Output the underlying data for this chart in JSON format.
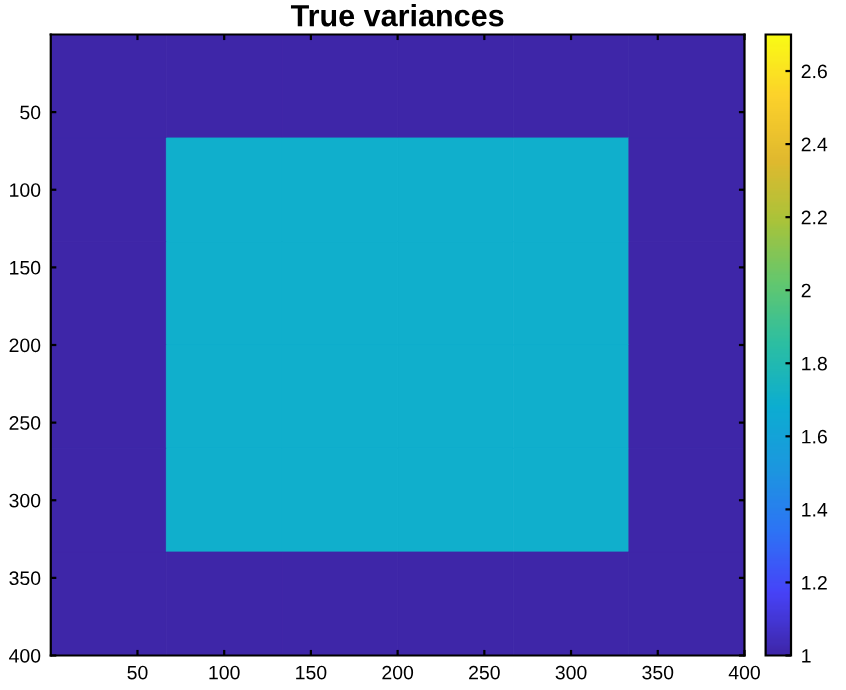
{
  "chart_data": {
    "type": "heatmap",
    "title": "True variances",
    "x": [
      33.3,
      100,
      166.7,
      233.3,
      300,
      366.7
    ],
    "y": [
      33.3,
      100,
      166.7,
      233.3,
      300,
      366.7
    ],
    "cells": [
      [
        1,
        1,
        1,
        1,
        1,
        1
      ],
      [
        1,
        1.7,
        1.7,
        1.7,
        1.7,
        1
      ],
      [
        1,
        1.7,
        1.7,
        1.7,
        1.7,
        1
      ],
      [
        1,
        1.7,
        1.7,
        1.7,
        1.7,
        1
      ],
      [
        1,
        1.7,
        1.7,
        1.7,
        1.7,
        1
      ],
      [
        1,
        1,
        1,
        1,
        1,
        1
      ]
    ],
    "xlim": [
      0,
      400
    ],
    "ylim": [
      400,
      0
    ],
    "xticks": [
      50,
      100,
      150,
      200,
      250,
      300,
      350,
      400
    ],
    "yticks": [
      50,
      100,
      150,
      200,
      250,
      300,
      350,
      400
    ],
    "clim": [
      1,
      2.7
    ],
    "cticks": [
      1,
      1.2,
      1.4,
      1.6,
      1.8,
      2,
      2.2,
      2.4,
      2.6
    ]
  }
}
